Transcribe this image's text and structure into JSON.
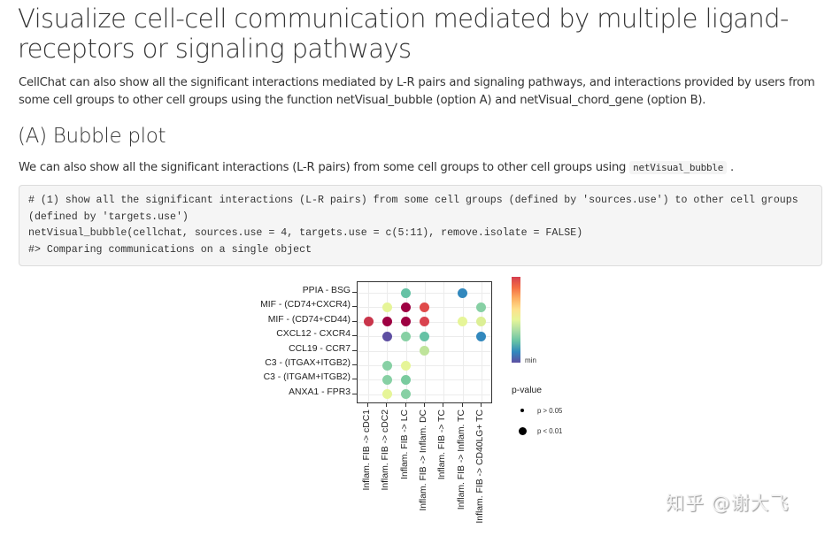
{
  "heading": "Visualize cell-cell communication mediated by multiple ligand-receptors or signaling pathways",
  "intro_paragraph": "CellChat can also show all the significant interactions mediated by L-R pairs and signaling pathways, and interactions provided by users from some cell groups to other cell groups using the function netVisual_bubble (option A) and netVisual_chord_gene (option B).",
  "section": {
    "title": "(A) Bubble plot",
    "text_before_code": "We can also show all the significant interactions (L-R pairs) from some cell groups to other cell groups using ",
    "inline_code": "netVisual_bubble",
    "text_after_code": " ."
  },
  "code_block": {
    "lines": [
      "# (1) show all the significant interactions (L-R pairs) from some cell groups (defined by 'sources.use') to other cell groups",
      "(defined by 'targets.use')",
      "netVisual_bubble(cellchat, sources.use = 4, targets.use = c(5:11), remove.isolate = FALSE)",
      "#> Comparing communications on a single object"
    ]
  },
  "chart_data": {
    "type": "bubble",
    "title": "",
    "y_categories": [
      "PPIA - BSG",
      "MIF - (CD74+CXCR4)",
      "MIF - (CD74+CD44)",
      "CXCL12 - CXCR4",
      "CCL19 - CCR7",
      "C3 - (ITGAX+ITGB2)",
      "C3 - (ITGAM+ITGB2)",
      "ANXA1 - FPR3"
    ],
    "x_categories": [
      "Inflam. FIB -> cDC1",
      "Inflam. FIB -> cDC2",
      "Inflam. FIB -> LC",
      "Inflam. FIB -> Inflam. DC",
      "Inflam. FIB -> TC",
      "Inflam. FIB -> Inflam. TC",
      "Inflam. FIB -> CD40LG+ TC"
    ],
    "colorbar": {
      "label_min": "min",
      "palette": "Spectral",
      "colors_top_to_bottom": [
        "#d53e4f",
        "#f46d43",
        "#fdae61",
        "#fee08b",
        "#e6f598",
        "#abdda4",
        "#66c2a5",
        "#3288bd",
        "#5e4fa2"
      ]
    },
    "size_legend": {
      "title": "p-value",
      "items": [
        {
          "label": "p > 0.05",
          "size": "small"
        },
        {
          "label": "p < 0.01",
          "size": "large"
        }
      ]
    },
    "points": [
      {
        "y": "PPIA - BSG",
        "x": "Inflam. FIB -> LC",
        "color": "#66c2a5",
        "p": "p < 0.01"
      },
      {
        "y": "PPIA - BSG",
        "x": "Inflam. FIB -> Inflam. TC",
        "color": "#3288bd",
        "p": "p < 0.01"
      },
      {
        "y": "MIF - (CD74+CXCR4)",
        "x": "Inflam. FIB -> cDC2",
        "color": "#e6f598",
        "p": "p < 0.01"
      },
      {
        "y": "MIF - (CD74+CXCR4)",
        "x": "Inflam. FIB -> LC",
        "color": "#9e0142",
        "p": "p < 0.01"
      },
      {
        "y": "MIF - (CD74+CXCR4)",
        "x": "Inflam. FIB -> Inflam. DC",
        "color": "#e04a4a",
        "p": "p < 0.01"
      },
      {
        "y": "MIF - (CD74+CXCR4)",
        "x": "Inflam. FIB -> CD40LG+ TC",
        "color": "#87d0a4",
        "p": "p < 0.01"
      },
      {
        "y": "MIF - (CD74+CD44)",
        "x": "Inflam. FIB -> cDC1",
        "color": "#c9354b",
        "p": "p < 0.01"
      },
      {
        "y": "MIF - (CD74+CD44)",
        "x": "Inflam. FIB -> cDC2",
        "color": "#9e0142",
        "p": "p < 0.01"
      },
      {
        "y": "MIF - (CD74+CD44)",
        "x": "Inflam. FIB -> LC",
        "color": "#9e0142",
        "p": "p < 0.01"
      },
      {
        "y": "MIF - (CD74+CD44)",
        "x": "Inflam. FIB -> Inflam. DC",
        "color": "#d9434f",
        "p": "p < 0.01"
      },
      {
        "y": "MIF - (CD74+CD44)",
        "x": "Inflam. FIB -> Inflam. TC",
        "color": "#e6f598",
        "p": "p < 0.01"
      },
      {
        "y": "MIF - (CD74+CD44)",
        "x": "Inflam. FIB -> CD40LG+ TC",
        "color": "#dcef96",
        "p": "p < 0.01"
      },
      {
        "y": "CXCL12 - CXCR4",
        "x": "Inflam. FIB -> cDC2",
        "color": "#5e4fa2",
        "p": "p < 0.01"
      },
      {
        "y": "CXCL12 - CXCR4",
        "x": "Inflam. FIB -> LC",
        "color": "#87d0a4",
        "p": "p < 0.01"
      },
      {
        "y": "CXCL12 - CXCR4",
        "x": "Inflam. FIB -> Inflam. DC",
        "color": "#66c2a5",
        "p": "p < 0.01"
      },
      {
        "y": "CXCL12 - CXCR4",
        "x": "Inflam. FIB -> CD40LG+ TC",
        "color": "#3288bd",
        "p": "p < 0.01"
      },
      {
        "y": "CCL19 - CCR7",
        "x": "Inflam. FIB -> Inflam. DC",
        "color": "#bfe49b",
        "p": "p < 0.01"
      },
      {
        "y": "C3 - (ITGAX+ITGB2)",
        "x": "Inflam. FIB -> cDC2",
        "color": "#87d0a4",
        "p": "p < 0.01"
      },
      {
        "y": "C3 - (ITGAX+ITGB2)",
        "x": "Inflam. FIB -> LC",
        "color": "#e6f598",
        "p": "p < 0.01"
      },
      {
        "y": "C3 - (ITGAM+ITGB2)",
        "x": "Inflam. FIB -> cDC2",
        "color": "#87d0a4",
        "p": "p < 0.01"
      },
      {
        "y": "C3 - (ITGAM+ITGB2)",
        "x": "Inflam. FIB -> LC",
        "color": "#7acb9f",
        "p": "p < 0.01"
      },
      {
        "y": "ANXA1 - FPR3",
        "x": "Inflam. FIB -> cDC2",
        "color": "#e6f598",
        "p": "p < 0.01"
      },
      {
        "y": "ANXA1 - FPR3",
        "x": "Inflam. FIB -> LC",
        "color": "#87d0a4",
        "p": "p < 0.01"
      }
    ]
  },
  "watermark": "知乎 @谢大飞"
}
